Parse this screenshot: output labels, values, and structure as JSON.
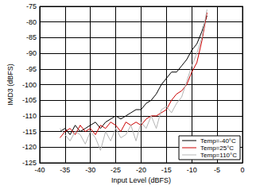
{
  "chart_data": {
    "type": "line",
    "x_label": "Input Level (dBFS)",
    "y_label": "IMD3 (dBFS)",
    "x": [
      -36,
      -35,
      -34,
      -33,
      -32,
      -31,
      -30,
      -29,
      -28,
      -27,
      -26,
      -25,
      -24,
      -23,
      -22,
      -21,
      -20,
      -19,
      -18,
      -17,
      -16,
      -15,
      -14,
      -13,
      -12,
      -11,
      -10,
      -9,
      -8,
      -7
    ],
    "series": [
      {
        "name": "Temp=-40°C",
        "color": "#000000",
        "values": [
          -115,
          -114,
          -116,
          -113,
          -115,
          -114,
          -113,
          -112,
          -114,
          -112,
          -111,
          -110,
          -111,
          -110,
          -109,
          -108,
          -108,
          -106,
          -105,
          -103,
          -100,
          -98,
          -96,
          -96,
          -94,
          -92,
          -89,
          -87,
          -83,
          -78
        ]
      },
      {
        "name": "Temp=25°C",
        "color": "#cc0000",
        "values": [
          -117,
          -115,
          -114,
          -116,
          -113,
          -115,
          -114,
          -116,
          -113,
          -114,
          -112,
          -113,
          -115,
          -112,
          -113,
          -112,
          -113,
          -111,
          -110,
          -110,
          -109,
          -108,
          -105,
          -103,
          -102,
          -100,
          -96,
          -93,
          -86,
          -77
        ]
      },
      {
        "name": "Temp=110°C",
        "color": "#b4b4b4",
        "values": [
          -114,
          -116,
          -118,
          -115,
          -116,
          -119,
          -115,
          -117,
          -121,
          -115,
          -118,
          -114,
          -117,
          -116,
          -113,
          -118,
          -112,
          -114,
          -110,
          -114,
          -108,
          -107,
          -109,
          -106,
          -104,
          -99,
          -94,
          -90,
          -85,
          -76
        ]
      }
    ],
    "xlim": [
      -40,
      0
    ],
    "xticks": [
      -40,
      -35,
      -30,
      -25,
      -20,
      -15,
      -10,
      -5,
      0
    ],
    "ylim": [
      -125,
      -75
    ],
    "yticks": [
      -125,
      -120,
      -115,
      -110,
      -105,
      -100,
      -95,
      -90,
      -85,
      -80,
      -75
    ],
    "grid": true,
    "legend": "lower right"
  }
}
